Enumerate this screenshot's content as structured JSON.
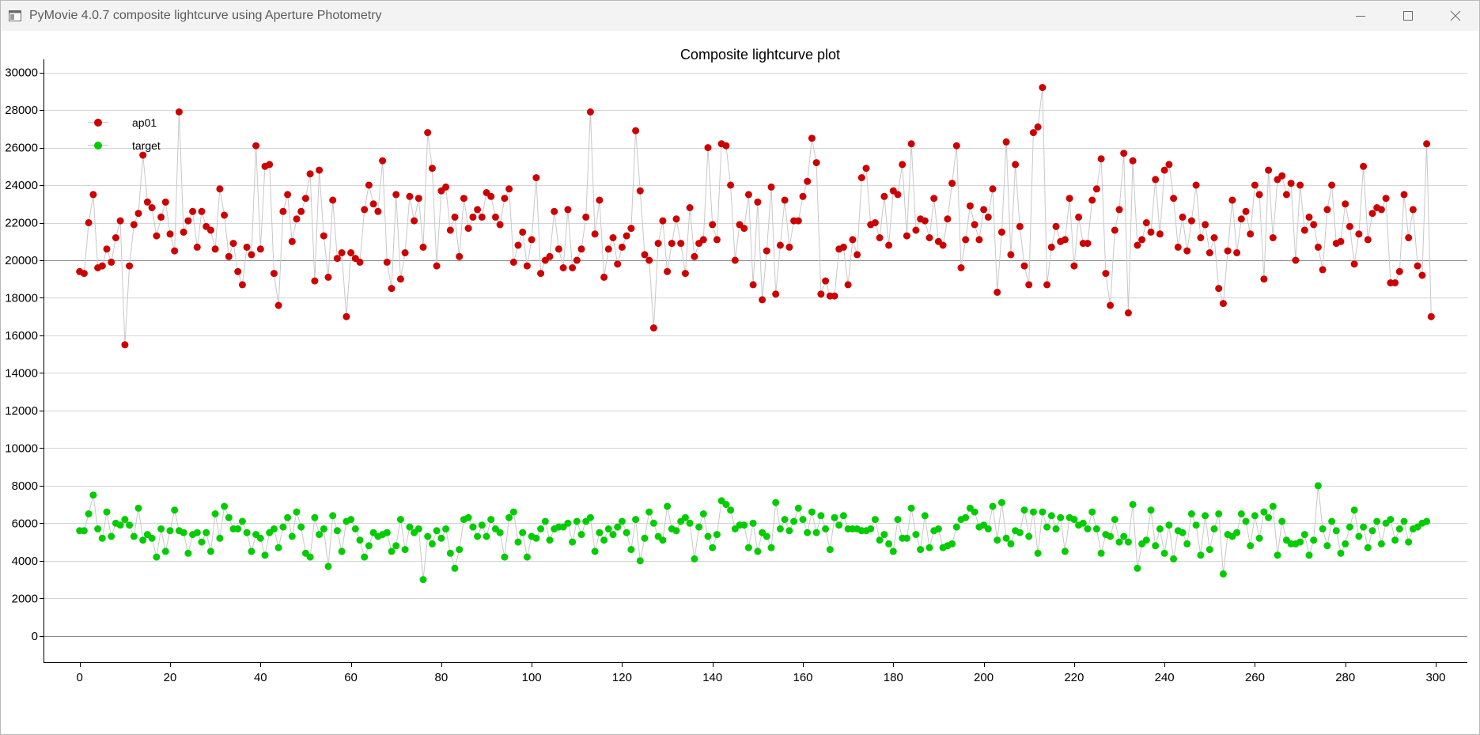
{
  "window": {
    "title": "PyMovie 4.0.7 composite lightcurve using Aperture Photometry",
    "controls": [
      "minimize",
      "maximize",
      "close"
    ],
    "icon": "app-window-icon"
  },
  "chart_data": {
    "type": "scatter",
    "title": "Composite lightcurve plot",
    "xlabel": "",
    "ylabel": "",
    "xlim": [
      -8,
      307
    ],
    "ylim": [
      -1400,
      30700
    ],
    "x_ticks": [
      0,
      20,
      40,
      60,
      80,
      100,
      120,
      140,
      160,
      180,
      200,
      220,
      240,
      260,
      280,
      300
    ],
    "y_ticks": [
      0,
      2000,
      4000,
      6000,
      8000,
      10000,
      12000,
      14000,
      16000,
      18000,
      20000,
      22000,
      24000,
      26000,
      28000,
      30000
    ],
    "grid": "horizontal",
    "connect_points": true,
    "line_color": "#c8c8c8",
    "legend_position": "top-left",
    "series": [
      {
        "name": "ap01",
        "color": "#cc0000",
        "values": [
          19400,
          19300,
          22000,
          23500,
          19600,
          19700,
          20600,
          19900,
          21200,
          22100,
          15500,
          19700,
          21900,
          22500,
          25600,
          23100,
          22800,
          21300,
          22300,
          23100,
          21400,
          20500,
          27900,
          21500,
          22100,
          22600,
          20700,
          22600,
          21800,
          21600,
          20600,
          23800,
          22400,
          20200,
          20900,
          19400,
          18700,
          20700,
          20300,
          26100,
          20600,
          25000,
          25100,
          19300,
          17600,
          22600,
          23500,
          21000,
          22200,
          22600,
          23300,
          24600,
          18900,
          24800,
          21300,
          19100,
          23200,
          20100,
          20400,
          17000,
          20400,
          20100,
          19900,
          22700,
          24000,
          23000,
          22600,
          25300,
          19900,
          18500,
          23500,
          19000,
          20400,
          23400,
          22100,
          23300,
          20700,
          26800,
          24900,
          19700,
          23700,
          23900,
          21600,
          22300,
          20200,
          23300,
          21700,
          22300,
          22700,
          22300,
          23600,
          23400,
          22300,
          21900,
          23300,
          23800,
          19900,
          20800,
          21500,
          19700,
          21100,
          24400,
          19300,
          20000,
          20200,
          22600,
          20600,
          19600,
          22700,
          19600,
          20000,
          20600,
          22300,
          27900,
          21400,
          23200,
          19100,
          20600,
          21200,
          19800,
          20700,
          21300,
          21700,
          26900,
          23700,
          20300,
          20000,
          16400,
          20900,
          22100,
          19400,
          20900,
          22200,
          20900,
          19300,
          22800,
          20200,
          20900,
          21100,
          26000,
          21900,
          21100,
          26200,
          26100,
          24000,
          20000,
          21900,
          21700,
          23500,
          18700,
          23100,
          17900,
          20500,
          23900,
          18200,
          20800,
          23200,
          20700,
          22100,
          22100,
          23400,
          24200,
          26500,
          25200,
          18200,
          18900,
          18100,
          18100,
          20600,
          20700,
          18700,
          21100,
          20300,
          24400,
          24900,
          21900,
          22000,
          21200,
          23400,
          20800,
          23700,
          23500,
          25100,
          21300,
          26200,
          21600,
          22200,
          22100,
          21200,
          23300,
          21000,
          20800,
          22200,
          24100,
          26100,
          19600,
          21100,
          22900,
          21900,
          21100,
          22700,
          22300,
          23800,
          18300,
          21500,
          26300,
          20300,
          25100,
          21800,
          19700,
          18700,
          26800,
          27100,
          29200,
          18700,
          20700,
          21800,
          21000,
          21100,
          23300,
          19700,
          22300,
          20900,
          20900,
          23200,
          23800,
          25400,
          19300,
          17600,
          21600,
          22700,
          25700,
          17200,
          25300,
          20800,
          21100,
          22000,
          21500,
          24300,
          21400,
          24800,
          25100,
          23300,
          20700,
          22300,
          20500,
          22100,
          24000,
          21200,
          21900,
          20400,
          21200,
          18500,
          17700,
          20500,
          23200,
          20400,
          22200,
          22600,
          21400,
          24000,
          23500,
          19000,
          24800,
          21200,
          24300,
          24500,
          23500,
          24100,
          20000,
          24000,
          21600,
          22300,
          21900,
          20700,
          19500,
          22700,
          24000,
          20900,
          21000,
          23000,
          21800,
          19800,
          21400,
          25000,
          21100,
          22500,
          22800,
          22700,
          23300,
          18800,
          18800,
          19400,
          23500,
          21200,
          22700,
          19700,
          19200,
          26200,
          17000
        ]
      },
      {
        "name": "target",
        "color": "#00cc00",
        "values": [
          5600,
          5600,
          6500,
          7500,
          5700,
          5200,
          6600,
          5300,
          6000,
          5900,
          6200,
          5900,
          5300,
          6800,
          5100,
          5400,
          5200,
          4200,
          5700,
          4500,
          5600,
          6700,
          5600,
          5500,
          4400,
          5400,
          5500,
          5000,
          5500,
          4500,
          6500,
          5200,
          6900,
          6300,
          5700,
          5700,
          6100,
          5500,
          4500,
          5400,
          5200,
          4300,
          5500,
          5700,
          4700,
          5800,
          6300,
          5300,
          6600,
          5800,
          4400,
          4200,
          6300,
          5400,
          5700,
          3700,
          6400,
          5600,
          4500,
          6100,
          6200,
          5700,
          5100,
          4200,
          4800,
          5500,
          5300,
          5400,
          5500,
          4500,
          4800,
          6200,
          4600,
          5800,
          5500,
          5700,
          3000,
          5300,
          4900,
          5600,
          5200,
          5700,
          4400,
          3600,
          4600,
          6200,
          6300,
          5800,
          5300,
          5900,
          5300,
          6200,
          5700,
          5500,
          4200,
          6300,
          6600,
          5000,
          5500,
          4200,
          5300,
          5200,
          5700,
          6100,
          5100,
          5700,
          5800,
          5800,
          6000,
          5000,
          6100,
          5400,
          6100,
          6300,
          4500,
          5500,
          5100,
          5700,
          5400,
          5800,
          6100,
          5500,
          4600,
          6200,
          4000,
          5200,
          6600,
          6000,
          5300,
          5100,
          6900,
          5700,
          5600,
          6100,
          6300,
          6000,
          4100,
          5800,
          6500,
          5300,
          4700,
          5400,
          7200,
          7000,
          6700,
          5700,
          5900,
          5900,
          4700,
          6000,
          4500,
          5500,
          5300,
          4700,
          7100,
          5700,
          6200,
          5600,
          6100,
          6800,
          6200,
          5500,
          6600,
          5500,
          6400,
          5700,
          4600,
          6300,
          5900,
          6400,
          5700,
          5700,
          5700,
          5600,
          5600,
          5700,
          6200,
          5100,
          5400,
          4900,
          4500,
          6200,
          5200,
          5200,
          6800,
          5400,
          4600,
          6400,
          4700,
          5600,
          5700,
          4700,
          4800,
          4900,
          5800,
          6200,
          6300,
          6800,
          6600,
          5800,
          5900,
          5700,
          6900,
          5100,
          7100,
          5200,
          4900,
          5600,
          5500,
          6700,
          5300,
          6600,
          4400,
          6600,
          5800,
          6400,
          5700,
          6300,
          4500,
          6300,
          6200,
          5900,
          6000,
          5700,
          6600,
          5700,
          4400,
          5400,
          5300,
          6200,
          5000,
          5300,
          5000,
          7000,
          3600,
          4900,
          5100,
          6700,
          4800,
          5700,
          4400,
          5900,
          4100,
          5600,
          5500,
          4900,
          6500,
          5900,
          4300,
          6400,
          4600,
          5700,
          6500,
          3300,
          5400,
          5300,
          5500,
          6500,
          6100,
          4800,
          6400,
          5200,
          6600,
          6300,
          6900,
          4300,
          6100,
          5100,
          4900,
          4900,
          5000,
          5400,
          4300,
          5100,
          8000,
          5700,
          4800,
          6100,
          5600,
          4400,
          4900,
          5800,
          6700,
          5300,
          5800,
          4700,
          5600,
          6100,
          4900,
          6000,
          6200,
          5100,
          5700,
          6100,
          5000,
          5700,
          5800,
          6000,
          6100
        ]
      }
    ]
  }
}
